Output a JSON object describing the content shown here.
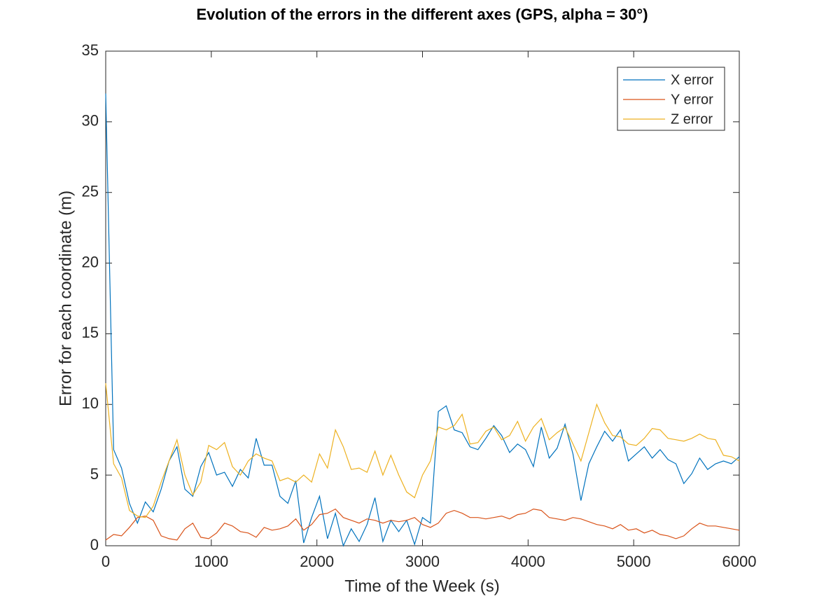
{
  "chart_data": {
    "type": "line",
    "title": "Evolution of the errors in the different axes (GPS, alpha = 30°)",
    "x_label": "Time of the Week (s)",
    "y_label": "Error for each coordinate (m)",
    "x": [
      0,
      75,
      150,
      225,
      300,
      375,
      450,
      525,
      600,
      675,
      750,
      825,
      900,
      975,
      1050,
      1125,
      1200,
      1275,
      1350,
      1425,
      1500,
      1575,
      1650,
      1725,
      1800,
      1875,
      1950,
      2025,
      2100,
      2175,
      2250,
      2325,
      2400,
      2475,
      2550,
      2625,
      2700,
      2775,
      2850,
      2925,
      3000,
      3075,
      3150,
      3225,
      3300,
      3375,
      3450,
      3525,
      3600,
      3675,
      3750,
      3825,
      3900,
      3975,
      4050,
      4125,
      4200,
      4275,
      4350,
      4425,
      4500,
      4575,
      4650,
      4725,
      4800,
      4875,
      4950,
      5025,
      5100,
      5175,
      5250,
      5325,
      5400,
      5475,
      5550,
      5625,
      5700,
      5775,
      5850,
      5925,
      6000
    ],
    "series": [
      {
        "name": "X error",
        "color": "#0072BD",
        "values": [
          32,
          6.8,
          5.5,
          3,
          1.6,
          3.1,
          2.4,
          4,
          6,
          7,
          4,
          3.5,
          5.6,
          6.6,
          5,
          5.2,
          4.2,
          5.4,
          4.8,
          7.6,
          5.7,
          5.7,
          3.5,
          3,
          4.6,
          0.2,
          2,
          3.5,
          0.5,
          2.3,
          0,
          1.2,
          0.3,
          1.5,
          3.4,
          0.3,
          1.8,
          1,
          1.8,
          0.1,
          2,
          1.6,
          9.5,
          9.9,
          8.2,
          8,
          7,
          6.8,
          7.6,
          8.5,
          7.8,
          6.6,
          7.2,
          6.8,
          5.6,
          8.4,
          6.2,
          6.9,
          8.6,
          6.5,
          3.2,
          5.8,
          7,
          8.1,
          7.4,
          8.2,
          6,
          6.5,
          7,
          6.2,
          6.8,
          6.1,
          5.8,
          4.4,
          5.1,
          6.2,
          5.4,
          5.8,
          6,
          5.8,
          6.3
        ]
      },
      {
        "name": "Y error",
        "color": "#D95319",
        "values": [
          0.4,
          0.8,
          0.7,
          1.3,
          2,
          2.1,
          1.8,
          0.7,
          0.5,
          0.4,
          1.2,
          1.6,
          0.6,
          0.5,
          0.9,
          1.6,
          1.4,
          1,
          0.9,
          0.6,
          1.3,
          1.1,
          1.2,
          1.4,
          1.9,
          1.1,
          1.5,
          2.2,
          2.3,
          2.6,
          2,
          1.8,
          1.6,
          1.9,
          1.8,
          1.6,
          1.8,
          1.7,
          1.8,
          2,
          1.5,
          1.3,
          1.6,
          2.3,
          2.5,
          2.3,
          2,
          2,
          1.9,
          2,
          2.1,
          1.9,
          2.2,
          2.3,
          2.6,
          2.5,
          2,
          1.9,
          1.8,
          2,
          1.9,
          1.7,
          1.5,
          1.4,
          1.2,
          1.5,
          1.1,
          1.2,
          0.9,
          1.1,
          0.8,
          0.7,
          0.5,
          0.7,
          1.2,
          1.6,
          1.4,
          1.4,
          1.3,
          1.2,
          1.1
        ]
      },
      {
        "name": "Z error",
        "color": "#EDB120",
        "values": [
          11.5,
          5.8,
          4.8,
          2.5,
          2.1,
          2,
          2.8,
          4.5,
          6,
          7.5,
          5,
          3.6,
          4.5,
          7.1,
          6.8,
          7.3,
          5.6,
          5,
          6,
          6.5,
          6.2,
          6,
          4.6,
          4.8,
          4.5,
          5,
          4.5,
          6.5,
          5.5,
          8.2,
          7,
          5.4,
          5.5,
          5.2,
          6.7,
          5,
          6.4,
          5,
          3.8,
          3.4,
          5,
          6,
          8.4,
          8.2,
          8.5,
          9.3,
          7.2,
          7.3,
          8.1,
          8.4,
          7.5,
          7.8,
          8.8,
          7.4,
          8.4,
          9,
          7.5,
          8,
          8.4,
          7.2,
          6,
          8,
          10,
          8.7,
          7.8,
          7.7,
          7.2,
          7.1,
          7.6,
          8.3,
          8.2,
          7.6,
          7.5,
          7.4,
          7.6,
          7.9,
          7.6,
          7.5,
          6.4,
          6.3,
          6
        ]
      }
    ],
    "xlim": [
      0,
      6000
    ],
    "xticks": [
      0,
      1000,
      2000,
      3000,
      4000,
      5000,
      6000
    ],
    "ylim": [
      0,
      35
    ],
    "yticks": [
      0,
      5,
      10,
      15,
      20,
      25,
      30,
      35
    ],
    "legend": "top-right",
    "grid": false
  }
}
